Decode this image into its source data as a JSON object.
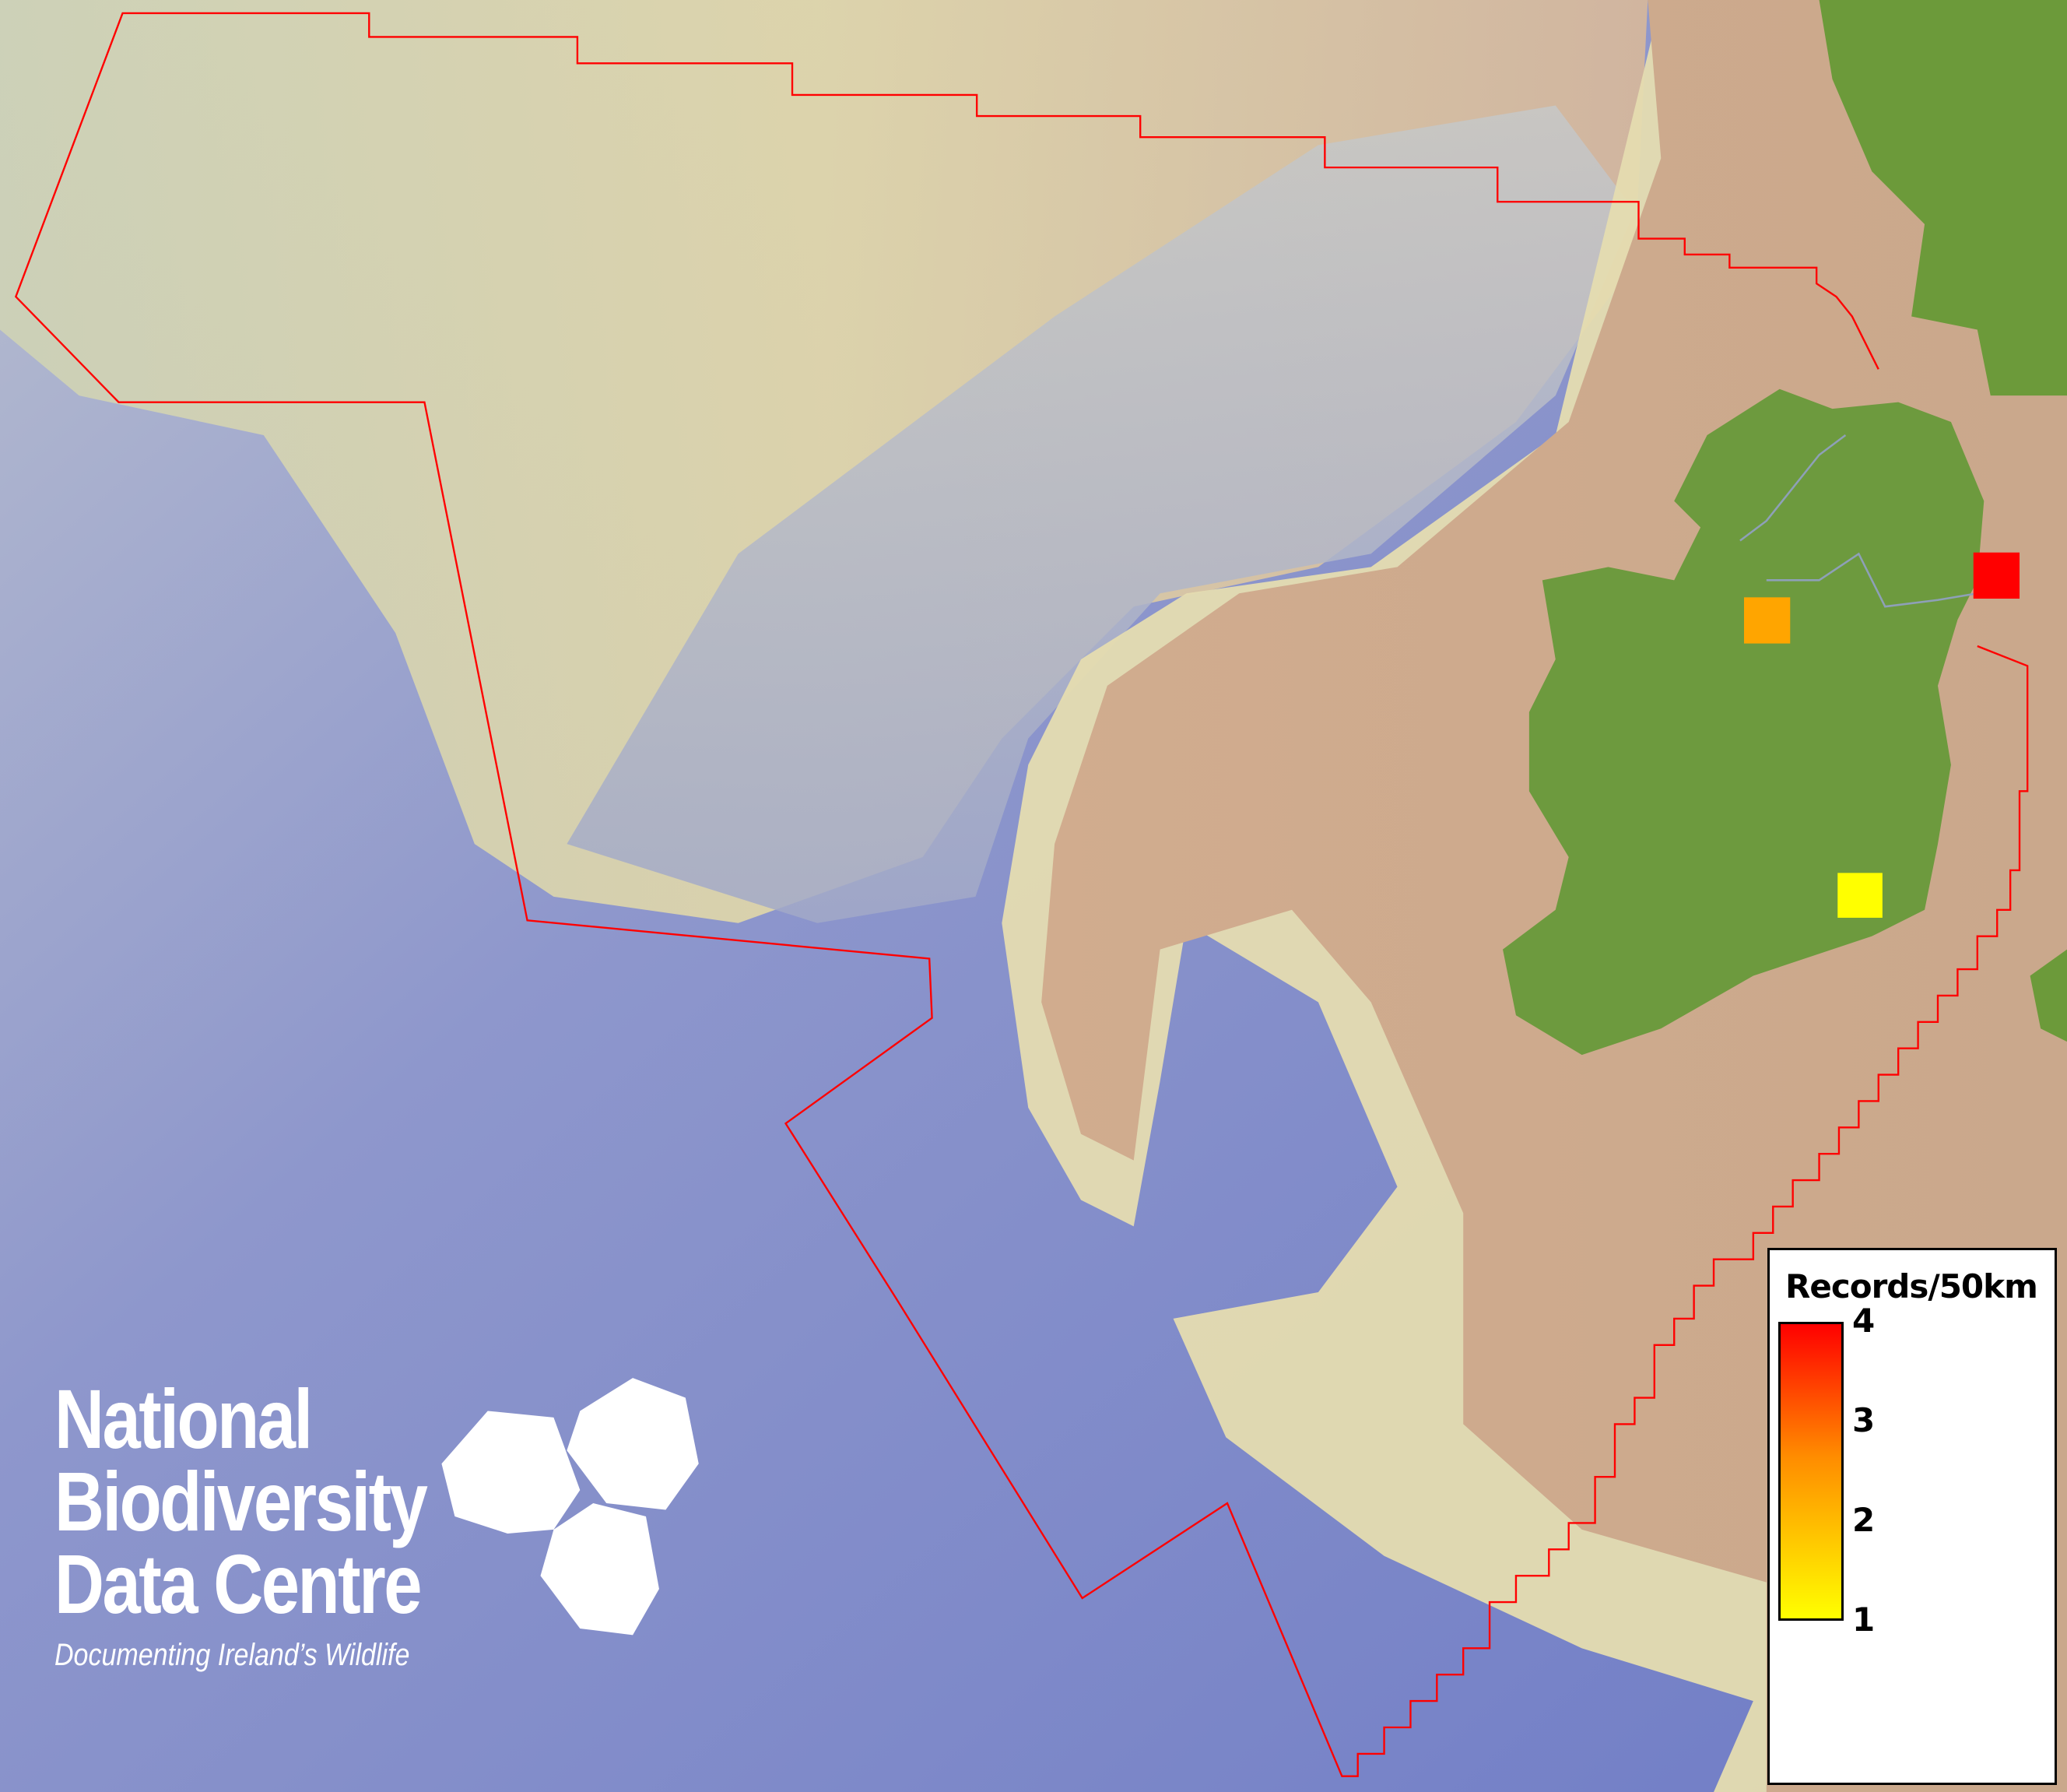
{
  "legend": {
    "title": "Records/50km",
    "ticks": [
      "4",
      "3",
      "2",
      "1"
    ],
    "min": 1,
    "max": 4,
    "colors": {
      "low": "#ffff00",
      "mid": "#ff8c00",
      "high": "#ff0000"
    }
  },
  "records": [
    {
      "cell": "north-west",
      "value": 2,
      "color": "#ffa500"
    },
    {
      "cell": "north-east",
      "value": 4,
      "color": "#ff0000"
    },
    {
      "cell": "south-east",
      "value": 1,
      "color": "#ffff00"
    }
  ],
  "boundary_color": "#ff0000",
  "logo": {
    "line1": "National",
    "line2": "Biodiversity",
    "line3": "Data Centre",
    "tagline": "Documenting Ireland’s Wildlife"
  }
}
